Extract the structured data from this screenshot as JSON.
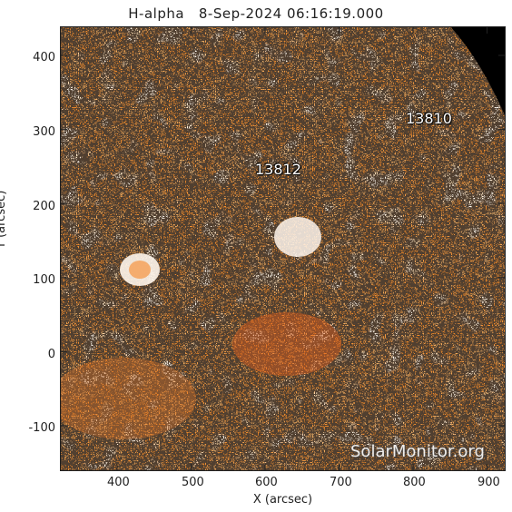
{
  "header": {
    "title": "H-alpha   8-Sep-2024 06:16:19.000"
  },
  "axes": {
    "xlabel": "X (arcsec)",
    "ylabel": "Y (arcsec)",
    "xticks": [
      "400",
      "500",
      "600",
      "700",
      "800",
      "900"
    ],
    "yticks": [
      "400",
      "300",
      "200",
      "100",
      "0",
      "-100"
    ],
    "x_range_arcsec": [
      320,
      920
    ],
    "y_range_arcsec": [
      -158,
      440
    ]
  },
  "image": {
    "type": "solar H-alpha chromosphere image, orange color map",
    "colors": {
      "base": "#f08a2a",
      "dark": "#d9541a",
      "bright": "#fff3e6",
      "space": "#000000"
    }
  },
  "regions": [
    {
      "label": "13810"
    },
    {
      "label": "13812"
    }
  ],
  "watermark": "SolarMonitor.org"
}
